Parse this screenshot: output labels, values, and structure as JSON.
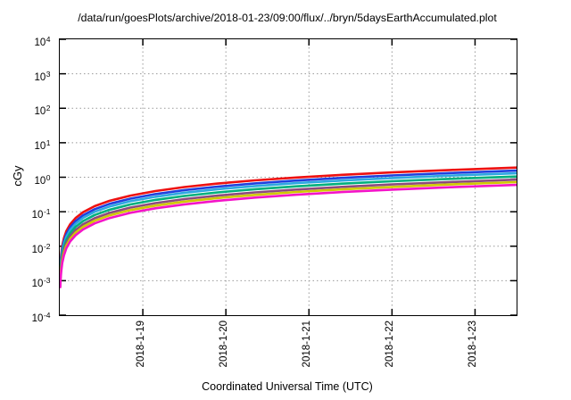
{
  "title": "/data/run/goesPlots/archive/2018-01-23/09:00/flux/../bryn/5daysEarthAccumulated.plot",
  "axes": {
    "y_label": "cGy",
    "x_label": "Coordinated Universal Time (UTC)",
    "y_tick_exponents": [
      4,
      3,
      2,
      1,
      0,
      -1,
      -2,
      -3,
      -4
    ],
    "x_tick_labels": [
      "2018-1-19",
      "2018-1-20",
      "2018-1-21",
      "2018-1-22",
      "2018-1-23"
    ]
  },
  "colors": {
    "border": "#000000",
    "text": "#000000",
    "grid": "#999999",
    "background": "#ffffff"
  },
  "chart_data": {
    "type": "line",
    "title": "/data/run/goesPlots/archive/2018-01-23/09:00/flux/../bryn/5daysEarthAccumulated.plot",
    "xlabel": "Coordinated Universal Time (UTC)",
    "ylabel": "cGy",
    "x_scale": "linear-time",
    "x_domain_days": [
      0,
      5.5
    ],
    "x_tick_positions_days": [
      1,
      2,
      3,
      4,
      5
    ],
    "x_tick_labels": [
      "2018-1-19",
      "2018-1-20",
      "2018-1-21",
      "2018-1-22",
      "2018-1-23"
    ],
    "y_scale": "log10",
    "y_domain": [
      0.0001,
      10000
    ],
    "y_tick_values": [
      10000,
      1000,
      100,
      10,
      1,
      0.1,
      0.01,
      0.001,
      0.0001
    ],
    "grid": "dotted",
    "legend": "none",
    "description": "Seven accumulated-dose curves rising from ~2e-3 cGy at the left edge and leveling toward their final values at the right edge (linear accumulation on a log axis).",
    "t_days": [
      0.006,
      0.01,
      0.017,
      0.03,
      0.05,
      0.08,
      0.125,
      0.19,
      0.28,
      0.42,
      0.6,
      0.85,
      1.15,
      1.5,
      1.9,
      2.35,
      2.85,
      3.4,
      4.0,
      4.7,
      5.5
    ],
    "series": [
      {
        "name": "series-red",
        "color": "#ee1111",
        "final_cGy": 1.9,
        "values": [
          0.00207,
          0.00345,
          0.00587,
          0.01036,
          0.01727,
          0.02764,
          0.04318,
          0.06564,
          0.09673,
          0.1451,
          0.2073,
          0.2936,
          0.3973,
          0.5182,
          0.6564,
          0.8118,
          0.9845,
          1.175,
          1.382,
          1.624,
          1.9
        ]
      },
      {
        "name": "series-blue",
        "color": "#2040dd",
        "final_cGy": 1.55,
        "values": [
          0.00169,
          0.00282,
          0.00479,
          0.00845,
          0.01409,
          0.02255,
          0.03523,
          0.05355,
          0.07891,
          0.1184,
          0.1691,
          0.2395,
          0.3241,
          0.4227,
          0.5355,
          0.6623,
          0.8032,
          0.9582,
          1.127,
          1.325,
          1.55
        ]
      },
      {
        "name": "series-cyan",
        "color": "#2ea8e0",
        "final_cGy": 1.3,
        "values": [
          0.00142,
          0.00236,
          0.00402,
          0.00709,
          0.01182,
          0.01891,
          0.02955,
          0.04491,
          0.06618,
          0.09927,
          0.1418,
          0.2009,
          0.2718,
          0.3545,
          0.4491,
          0.5555,
          0.6736,
          0.8036,
          0.9455,
          1.111,
          1.3
        ]
      },
      {
        "name": "series-green",
        "color": "#00b07c",
        "final_cGy": 1.05,
        "values": [
          0.00115,
          0.00191,
          0.00325,
          0.00573,
          0.00955,
          0.01527,
          0.02386,
          0.03627,
          0.05345,
          0.08018,
          0.1145,
          0.1623,
          0.2195,
          0.2864,
          0.3627,
          0.4486,
          0.5441,
          0.6491,
          0.7636,
          0.8973,
          1.05
        ]
      },
      {
        "name": "series-purple",
        "color": "#8c4b7e",
        "final_cGy": 0.85,
        "values": [
          0.00093,
          0.00155,
          0.00263,
          0.00464,
          0.00773,
          0.01236,
          0.01932,
          0.02936,
          0.04327,
          0.06491,
          0.09273,
          0.1314,
          0.1777,
          0.2318,
          0.2936,
          0.3632,
          0.4405,
          0.5255,
          0.6182,
          0.7264,
          0.85
        ]
      },
      {
        "name": "series-yellow",
        "color": "#d0c800",
        "final_cGy": 0.72,
        "values": [
          0.00079,
          0.00131,
          0.00223,
          0.00393,
          0.00655,
          0.01047,
          0.01636,
          0.02487,
          0.03665,
          0.05498,
          0.07855,
          0.1113,
          0.1505,
          0.1964,
          0.2487,
          0.3076,
          0.3731,
          0.4451,
          0.5236,
          0.6153,
          0.72
        ]
      },
      {
        "name": "series-magenta",
        "color": "#f414c8",
        "final_cGy": 0.6,
        "values": [
          0.00065,
          0.00109,
          0.00185,
          0.00327,
          0.00545,
          0.00873,
          0.01364,
          0.02073,
          0.03055,
          0.04582,
          0.06545,
          0.09273,
          0.1255,
          0.1636,
          0.2073,
          0.2564,
          0.3109,
          0.3709,
          0.4364,
          0.5127,
          0.6
        ]
      }
    ]
  }
}
